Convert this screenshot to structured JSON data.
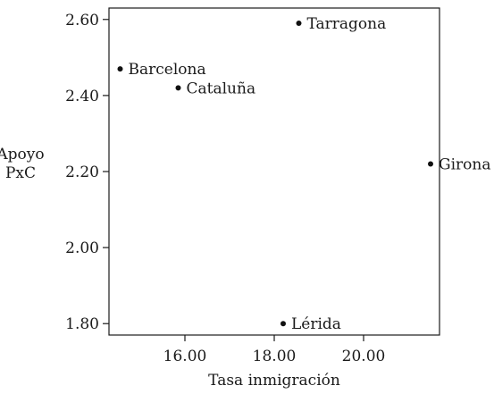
{
  "chart_data": {
    "type": "scatter",
    "xlabel": "Tasa inmigración",
    "ylabel_lines": [
      "Apoyo",
      "PxC"
    ],
    "xlim": [
      14.3,
      21.7
    ],
    "ylim": [
      1.77,
      2.63
    ],
    "x_ticks": [
      {
        "value": 16,
        "label": "16.00"
      },
      {
        "value": 18,
        "label": "18.00"
      },
      {
        "value": 20,
        "label": "20.00"
      }
    ],
    "y_ticks": [
      {
        "value": 1.8,
        "label": "1.80"
      },
      {
        "value": 2.0,
        "label": "2.00"
      },
      {
        "value": 2.2,
        "label": "2.20"
      },
      {
        "value": 2.4,
        "label": "2.40"
      },
      {
        "value": 2.6,
        "label": "2.60"
      }
    ],
    "points": [
      {
        "label": "Tarragona",
        "x": 18.55,
        "y": 2.59
      },
      {
        "label": "Barcelona",
        "x": 14.55,
        "y": 2.47
      },
      {
        "label": "Cataluña",
        "x": 15.85,
        "y": 2.42
      },
      {
        "label": "Girona",
        "x": 21.5,
        "y": 2.22
      },
      {
        "label": "Lérida",
        "x": 18.2,
        "y": 1.8
      }
    ],
    "grid": false,
    "legend": "none"
  }
}
